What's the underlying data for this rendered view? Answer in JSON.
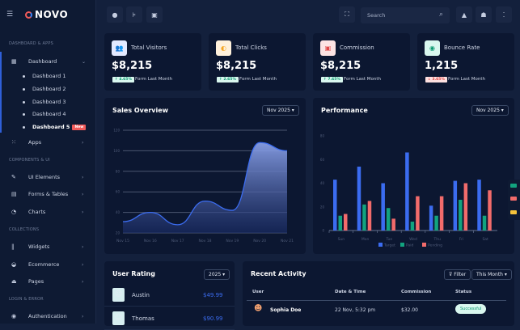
{
  "brand": "NOVO",
  "sidebar": {
    "sections": [
      "DASHBOARD & APPS",
      "COMPONENTS & UI",
      "COLLECTIONS",
      "LOGIN & ERROR"
    ],
    "dashboard": "Dashboard",
    "sub_items": [
      "Dashboard 1",
      "Dashboard 2",
      "Dashboard 3",
      "Dashboard 4",
      "Dashboard 5"
    ],
    "new_badge": "New",
    "apps": "Apps",
    "ui_elements": "UI Elements",
    "forms_tables": "Forms & Tables",
    "charts": "Charts",
    "widgets": "Widgets",
    "ecommerce": "Ecommerce",
    "pages": "Pages",
    "authentication": "Authentication"
  },
  "topbar": {
    "search_placeholder": "Search"
  },
  "stats": [
    {
      "title": "Total Visitors",
      "value": "$8,215",
      "change": "↑ 4.65%",
      "trend": "up",
      "note": "Form Last Month",
      "icon": "users-icon",
      "icon_bg": "#e3e9ff",
      "icon_color": "#3b5bdb"
    },
    {
      "title": "Total Clicks",
      "value": "$8,215",
      "change": "↑ 2.65%",
      "trend": "up",
      "note": "Form Last Month",
      "icon": "mouse-icon",
      "icon_bg": "#fff1dc",
      "icon_color": "#f5a623"
    },
    {
      "title": "Commission",
      "value": "$8,215",
      "change": "↑ 7.65%",
      "trend": "up",
      "note": "Form Last Month",
      "icon": "money-icon",
      "icon_bg": "#fde3e3",
      "icon_color": "#e04848"
    },
    {
      "title": "Bounce Rate",
      "value": "1,215",
      "change": "↓ 3.65%",
      "trend": "down",
      "note": "Form Last Month",
      "icon": "eye-icon",
      "icon_bg": "#d9f7ef",
      "icon_color": "#0d9a72"
    }
  ],
  "sales": {
    "title": "Sales Overview",
    "period": "Nov 2025 ▾"
  },
  "performance": {
    "title": "Performance",
    "period": "Nov 2025 ▾"
  },
  "chart_data": [
    {
      "type": "area",
      "x": [
        "Nov 15",
        "Nov 16",
        "Nov 17",
        "Nov 18",
        "Nov 19",
        "Nov 20",
        "Nov 21"
      ],
      "values": [
        31,
        40,
        28,
        51,
        42,
        108,
        100
      ],
      "yticks": [
        20,
        40,
        60,
        80,
        100,
        120
      ],
      "ylim": [
        20,
        120
      ],
      "grid": true,
      "color": "#3b6cf0"
    },
    {
      "type": "bar",
      "categories": [
        "Sun",
        "Mon",
        "Tue",
        "Wed",
        "Thu",
        "Fri",
        "Sat"
      ],
      "yticks": [
        0,
        20,
        40,
        60,
        80
      ],
      "ylim": [
        0,
        80
      ],
      "legend": "bottom",
      "series": [
        {
          "name": "Target",
          "color": "#3b6cf0",
          "values": [
            43,
            54,
            40,
            66,
            21,
            42,
            43
          ]
        },
        {
          "name": "Paid",
          "color": "#12a37f",
          "values": [
            12.5,
            22,
            19,
            7.5,
            12.5,
            26,
            12.5
          ]
        },
        {
          "name": "Pending",
          "color": "#f26b6b",
          "values": [
            14,
            25,
            10,
            29,
            29,
            40,
            34
          ]
        }
      ]
    }
  ],
  "rating": {
    "title": "User Rating",
    "period": "2025 ▾",
    "users": [
      {
        "name": "Austin",
        "value": "$49.99"
      },
      {
        "name": "Thomas",
        "value": "$90.99"
      }
    ]
  },
  "activity": {
    "title": "Recent Activity",
    "filter": "⊽ Filter",
    "period": "This Month ▾",
    "headers": [
      "User",
      "Date & Time",
      "Commission",
      "Status"
    ],
    "rows": [
      {
        "user": "Sophia Doe",
        "date": "22 Nov, 5:32 pm",
        "commission": "$32.00",
        "status": "Successful"
      }
    ]
  }
}
